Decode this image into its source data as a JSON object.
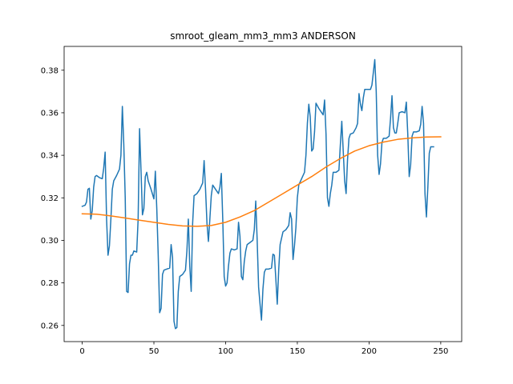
{
  "chart_data": {
    "type": "line",
    "title": "smroot_gleam_mm3_mm3 ANDERSON",
    "xlabel": "",
    "ylabel": "",
    "xlim": [
      -12.6,
      264.6
    ],
    "ylim": [
      0.2524,
      0.3912
    ],
    "grid": false,
    "legend": "none",
    "x_ticks": [
      0,
      50,
      100,
      150,
      200,
      250
    ],
    "x_tick_labels": [
      "0",
      "50",
      "100",
      "150",
      "200",
      "250"
    ],
    "y_ticks": [
      0.26,
      0.28,
      0.3,
      0.32,
      0.34,
      0.36,
      0.38
    ],
    "y_tick_labels": [
      "0.26",
      "0.28",
      "0.30",
      "0.32",
      "0.34",
      "0.36",
      "0.38"
    ],
    "series": [
      {
        "color": "#1f77b4",
        "points": [
          [
            0,
            0.316
          ],
          [
            2,
            0.3165
          ],
          [
            3,
            0.318
          ],
          [
            4,
            0.324
          ],
          [
            5,
            0.3245
          ],
          [
            6,
            0.31
          ],
          [
            7,
            0.314
          ],
          [
            8,
            0.325
          ],
          [
            9,
            0.33
          ],
          [
            10,
            0.3305
          ],
          [
            12,
            0.3295
          ],
          [
            14,
            0.329
          ],
          [
            15,
            0.334
          ],
          [
            16,
            0.3415
          ],
          [
            17,
            0.31
          ],
          [
            18,
            0.293
          ],
          [
            19,
            0.2975
          ],
          [
            20,
            0.31
          ],
          [
            21,
            0.324
          ],
          [
            22,
            0.328
          ],
          [
            24,
            0.3305
          ],
          [
            26,
            0.3335
          ],
          [
            27,
            0.34
          ],
          [
            28,
            0.363
          ],
          [
            29,
            0.345
          ],
          [
            30,
            0.32
          ],
          [
            31,
            0.276
          ],
          [
            32,
            0.2755
          ],
          [
            33,
            0.289
          ],
          [
            34,
            0.293
          ],
          [
            35,
            0.293
          ],
          [
            36,
            0.295
          ],
          [
            38,
            0.2945
          ],
          [
            39,
            0.31
          ],
          [
            40,
            0.3525
          ],
          [
            41,
            0.333
          ],
          [
            42,
            0.312
          ],
          [
            43,
            0.315
          ],
          [
            44,
            0.33
          ],
          [
            45,
            0.332
          ],
          [
            46,
            0.328
          ],
          [
            48,
            0.324
          ],
          [
            50,
            0.3195
          ],
          [
            51,
            0.3325
          ],
          [
            52,
            0.315
          ],
          [
            53,
            0.293
          ],
          [
            54,
            0.266
          ],
          [
            55,
            0.268
          ],
          [
            56,
            0.284
          ],
          [
            57,
            0.286
          ],
          [
            59,
            0.2865
          ],
          [
            61,
            0.287
          ],
          [
            62,
            0.298
          ],
          [
            63,
            0.292
          ],
          [
            64,
            0.262
          ],
          [
            65,
            0.2585
          ],
          [
            66,
            0.259
          ],
          [
            67,
            0.276
          ],
          [
            68,
            0.283
          ],
          [
            70,
            0.284
          ],
          [
            72,
            0.286
          ],
          [
            73,
            0.295
          ],
          [
            74,
            0.31
          ],
          [
            75,
            0.288
          ],
          [
            76,
            0.276
          ],
          [
            77,
            0.308
          ],
          [
            78,
            0.321
          ],
          [
            80,
            0.322
          ],
          [
            82,
            0.324
          ],
          [
            84,
            0.327
          ],
          [
            85,
            0.3375
          ],
          [
            86,
            0.324
          ],
          [
            87,
            0.308
          ],
          [
            88,
            0.2995
          ],
          [
            89,
            0.31
          ],
          [
            90,
            0.321
          ],
          [
            91,
            0.326
          ],
          [
            93,
            0.324
          ],
          [
            95,
            0.322
          ],
          [
            96,
            0.325
          ],
          [
            97,
            0.3315
          ],
          [
            98,
            0.31
          ],
          [
            99,
            0.283
          ],
          [
            100,
            0.2785
          ],
          [
            101,
            0.28
          ],
          [
            102,
            0.288
          ],
          [
            103,
            0.294
          ],
          [
            104,
            0.296
          ],
          [
            106,
            0.2955
          ],
          [
            108,
            0.296
          ],
          [
            109,
            0.3085
          ],
          [
            110,
            0.302
          ],
          [
            111,
            0.283
          ],
          [
            112,
            0.2815
          ],
          [
            113,
            0.29
          ],
          [
            114,
            0.295
          ],
          [
            115,
            0.298
          ],
          [
            117,
            0.299
          ],
          [
            119,
            0.3
          ],
          [
            120,
            0.305
          ],
          [
            121,
            0.3185
          ],
          [
            122,
            0.3
          ],
          [
            123,
            0.278
          ],
          [
            124,
            0.27
          ],
          [
            125,
            0.2625
          ],
          [
            126,
            0.277
          ],
          [
            127,
            0.285
          ],
          [
            128,
            0.2865
          ],
          [
            130,
            0.2865
          ],
          [
            132,
            0.287
          ],
          [
            133,
            0.2935
          ],
          [
            134,
            0.293
          ],
          [
            135,
            0.282
          ],
          [
            136,
            0.27
          ],
          [
            137,
            0.286
          ],
          [
            138,
            0.298
          ],
          [
            140,
            0.304
          ],
          [
            142,
            0.305
          ],
          [
            144,
            0.307
          ],
          [
            145,
            0.313
          ],
          [
            146,
            0.31
          ],
          [
            147,
            0.291
          ],
          [
            148,
            0.2975
          ],
          [
            149,
            0.306
          ],
          [
            150,
            0.32
          ],
          [
            151,
            0.326
          ],
          [
            153,
            0.329
          ],
          [
            155,
            0.332
          ],
          [
            156,
            0.34
          ],
          [
            157,
            0.355
          ],
          [
            158,
            0.364
          ],
          [
            159,
            0.358
          ],
          [
            160,
            0.342
          ],
          [
            161,
            0.343
          ],
          [
            162,
            0.351
          ],
          [
            163,
            0.3645
          ],
          [
            165,
            0.362
          ],
          [
            167,
            0.36
          ],
          [
            168,
            0.359
          ],
          [
            169,
            0.366
          ],
          [
            170,
            0.35
          ],
          [
            171,
            0.32
          ],
          [
            172,
            0.316
          ],
          [
            173,
            0.322
          ],
          [
            174,
            0.326
          ],
          [
            175,
            0.332
          ],
          [
            177,
            0.332
          ],
          [
            179,
            0.333
          ],
          [
            180,
            0.345
          ],
          [
            181,
            0.356
          ],
          [
            182,
            0.342
          ],
          [
            183,
            0.328
          ],
          [
            184,
            0.322
          ],
          [
            185,
            0.338
          ],
          [
            186,
            0.348
          ],
          [
            187,
            0.35
          ],
          [
            189,
            0.3505
          ],
          [
            191,
            0.353
          ],
          [
            192,
            0.355
          ],
          [
            193,
            0.369
          ],
          [
            194,
            0.364
          ],
          [
            195,
            0.361
          ],
          [
            196,
            0.367
          ],
          [
            197,
            0.371
          ],
          [
            199,
            0.371
          ],
          [
            201,
            0.371
          ],
          [
            202,
            0.373
          ],
          [
            203,
            0.379
          ],
          [
            204,
            0.385
          ],
          [
            205,
            0.37
          ],
          [
            206,
            0.34
          ],
          [
            207,
            0.331
          ],
          [
            208,
            0.336
          ],
          [
            209,
            0.346
          ],
          [
            210,
            0.348
          ],
          [
            212,
            0.348
          ],
          [
            214,
            0.349
          ],
          [
            215,
            0.3575
          ],
          [
            216,
            0.368
          ],
          [
            217,
            0.353
          ],
          [
            218,
            0.3505
          ],
          [
            219,
            0.3505
          ],
          [
            220,
            0.355
          ],
          [
            221,
            0.36
          ],
          [
            223,
            0.3605
          ],
          [
            225,
            0.36
          ],
          [
            226,
            0.365
          ],
          [
            227,
            0.35
          ],
          [
            228,
            0.33
          ],
          [
            229,
            0.3355
          ],
          [
            230,
            0.349
          ],
          [
            231,
            0.351
          ],
          [
            233,
            0.351
          ],
          [
            235,
            0.3515
          ],
          [
            236,
            0.3545
          ],
          [
            237,
            0.363
          ],
          [
            238,
            0.355
          ],
          [
            239,
            0.322
          ],
          [
            240,
            0.311
          ],
          [
            241,
            0.325
          ],
          [
            242,
            0.341
          ],
          [
            243,
            0.344
          ],
          [
            245,
            0.344
          ]
        ]
      },
      {
        "color": "#ff7f0e",
        "points": [
          [
            0,
            0.3125
          ],
          [
            10,
            0.3123
          ],
          [
            20,
            0.3115
          ],
          [
            30,
            0.3105
          ],
          [
            40,
            0.3095
          ],
          [
            50,
            0.3085
          ],
          [
            60,
            0.3075
          ],
          [
            70,
            0.3068
          ],
          [
            80,
            0.3066
          ],
          [
            90,
            0.307
          ],
          [
            100,
            0.3085
          ],
          [
            110,
            0.311
          ],
          [
            120,
            0.314
          ],
          [
            130,
            0.318
          ],
          [
            140,
            0.322
          ],
          [
            150,
            0.326
          ],
          [
            160,
            0.33
          ],
          [
            170,
            0.3345
          ],
          [
            180,
            0.3385
          ],
          [
            190,
            0.342
          ],
          [
            200,
            0.3445
          ],
          [
            210,
            0.3462
          ],
          [
            220,
            0.3475
          ],
          [
            230,
            0.3482
          ],
          [
            240,
            0.3486
          ],
          [
            250,
            0.3487
          ]
        ]
      }
    ]
  }
}
